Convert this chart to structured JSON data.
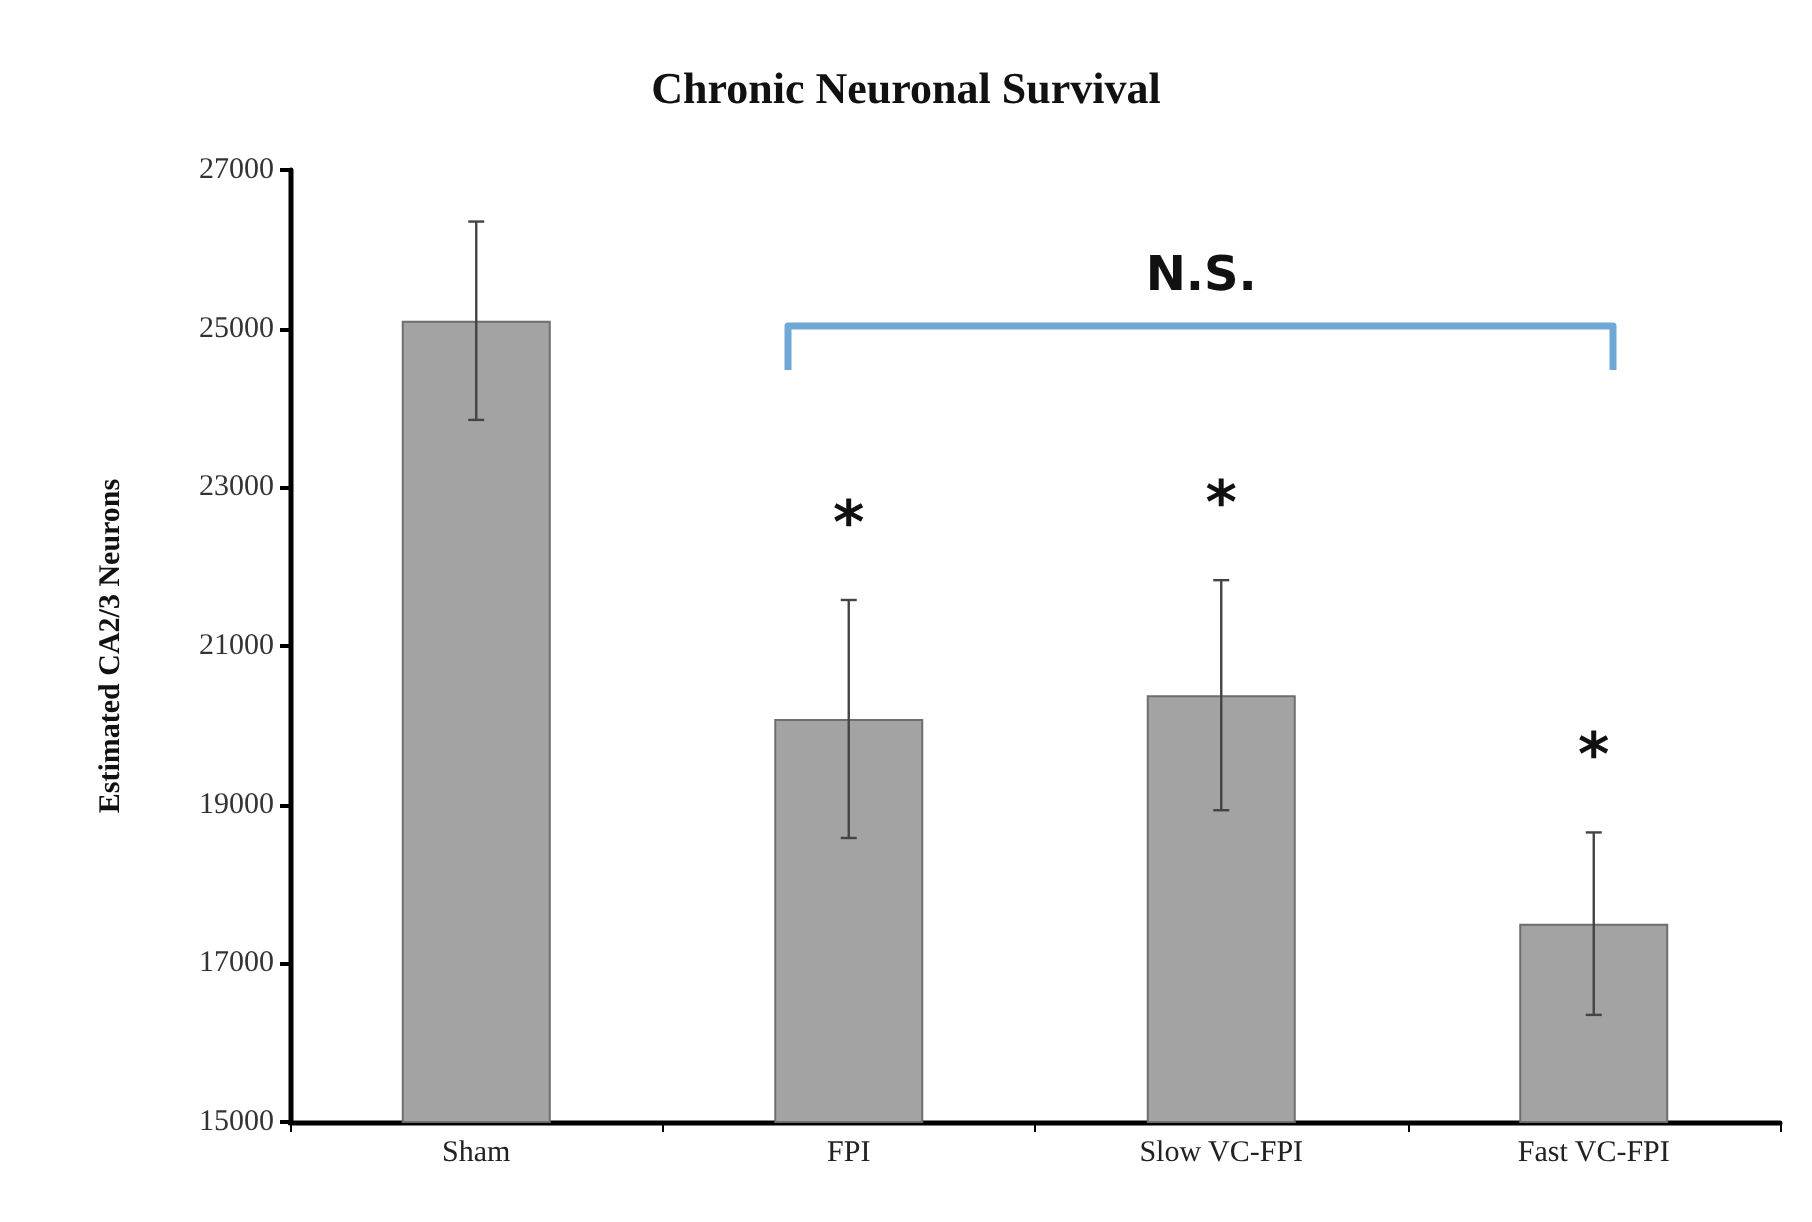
{
  "chart_data": {
    "type": "bar",
    "title": "Chronic Neuronal Survival",
    "ylabel": "Estimated CA2/3 Neurons",
    "categories": [
      "Sham",
      "FPI",
      "Slow VC-FPI",
      "Fast VC-FPI"
    ],
    "values": [
      25100,
      20080,
      20380,
      17500
    ],
    "errors": [
      1250,
      1500,
      1450,
      1150
    ],
    "color": "#a3a3a3",
    "ylim": [
      15000,
      27000
    ],
    "yticks": [
      15000,
      17000,
      19000,
      21000,
      23000,
      25000,
      27000
    ],
    "grid": false,
    "annotations": [
      "N.S.",
      "*",
      "*",
      "*"
    ]
  }
}
